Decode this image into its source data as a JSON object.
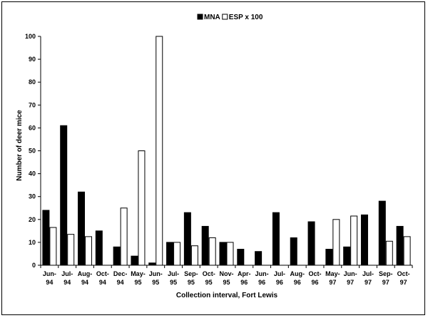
{
  "chart_data": {
    "type": "bar",
    "title": "",
    "xlabel": "Collection interval, Fort Lewis",
    "ylabel": "Number of deer mice",
    "ylim": [
      0,
      100
    ],
    "yticks": [
      0,
      10,
      20,
      30,
      40,
      50,
      60,
      70,
      80,
      90,
      100
    ],
    "categories": [
      [
        "Jun-",
        "94"
      ],
      [
        "Jul-",
        "94"
      ],
      [
        "Aug-",
        "94"
      ],
      [
        "Oct-",
        "94"
      ],
      [
        "Dec-",
        "94"
      ],
      [
        "May-",
        "95"
      ],
      [
        "Jun-",
        "95"
      ],
      [
        "Jul-",
        "95"
      ],
      [
        "Sep-",
        "95"
      ],
      [
        "Oct-",
        "95"
      ],
      [
        "Nov-",
        "95"
      ],
      [
        "Apr-",
        "96"
      ],
      [
        "Jun-",
        "96"
      ],
      [
        "Jul-",
        "96"
      ],
      [
        "Aug-",
        "96"
      ],
      [
        "Oct-",
        "96"
      ],
      [
        "May-",
        "97"
      ],
      [
        "Jun-",
        "97"
      ],
      [
        "Jul-",
        "97"
      ],
      [
        "Sep-",
        "97"
      ],
      [
        "Oct-",
        "97"
      ]
    ],
    "series": [
      {
        "name": "MNA",
        "color": "#000000",
        "values": [
          24,
          61,
          32,
          15,
          8,
          4,
          1,
          10,
          23,
          17,
          10,
          7,
          6,
          23,
          12,
          19,
          7,
          8,
          22,
          28,
          17
        ]
      },
      {
        "name": "ESP x 100",
        "color": "#ffffff",
        "values": [
          16.5,
          13.5,
          12.5,
          0,
          25,
          50,
          100,
          10,
          8.5,
          12,
          10,
          0,
          0,
          0,
          0,
          0,
          20,
          21.5,
          0,
          10.5,
          12.5
        ]
      }
    ],
    "legend_position": "top-center",
    "grid": false
  }
}
